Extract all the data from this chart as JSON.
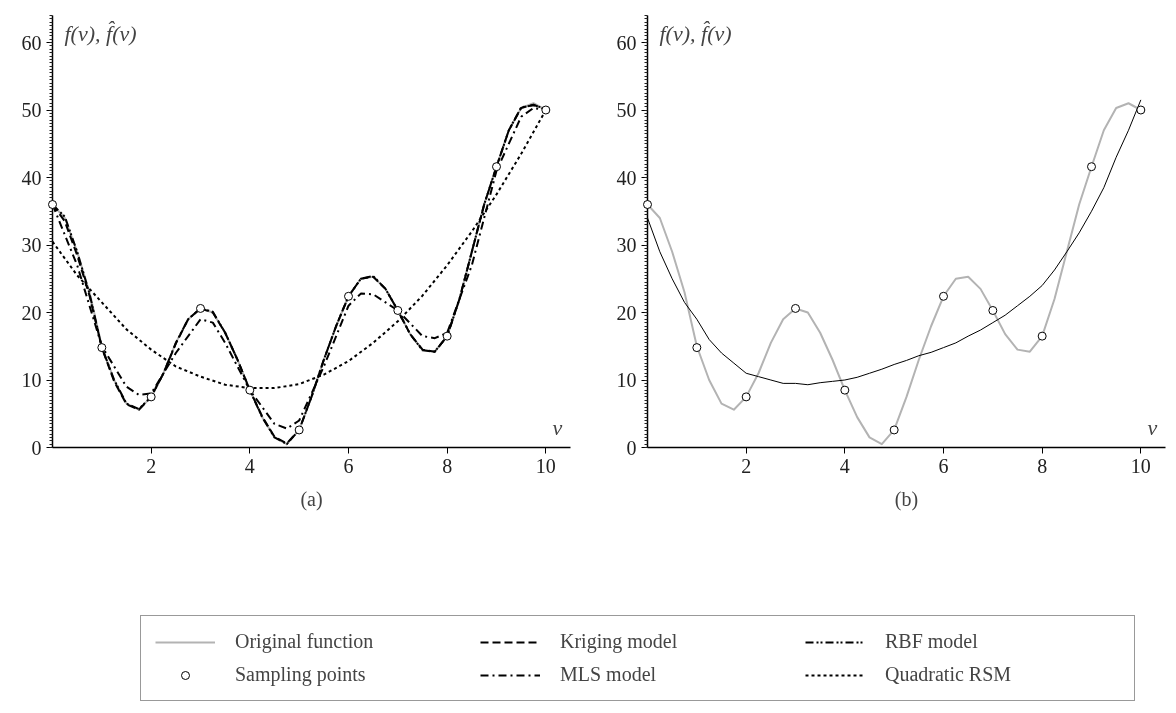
{
  "chart_data": [
    {
      "type": "line",
      "title": "(a)",
      "xlabel": "v",
      "ylabel": "f(v), f̂(v)",
      "xlim": [
        0,
        10.5
      ],
      "ylim": [
        0,
        64
      ],
      "xticks": [
        2,
        4,
        6,
        8,
        10
      ],
      "yticks": [
        0,
        10,
        20,
        30,
        40,
        50,
        60
      ],
      "legend": "bottom",
      "series": [
        {
          "name": "Original function",
          "color": "#b3b3b3",
          "line_style": "solid",
          "x": [
            0,
            0.25,
            0.5,
            0.75,
            1,
            1.25,
            1.5,
            1.75,
            2,
            2.25,
            2.5,
            2.75,
            3,
            3.25,
            3.5,
            3.75,
            4,
            4.25,
            4.5,
            4.75,
            5,
            5.25,
            5.5,
            5.75,
            6,
            6.25,
            6.5,
            6.75,
            7,
            7.25,
            7.5,
            7.75,
            8,
            8.25,
            8.5,
            8.75,
            9,
            9.25,
            9.5,
            9.75,
            10
          ],
          "values": [
            36,
            34,
            29,
            23,
            15,
            10,
            6.5,
            5.6,
            7.5,
            11,
            15.5,
            19,
            20.6,
            20,
            17,
            13,
            8.5,
            4.5,
            1.5,
            0.5,
            2.6,
            7.5,
            13,
            18,
            22.4,
            25,
            25.3,
            23.5,
            20.3,
            16.8,
            14.5,
            14.2,
            16.5,
            22,
            29,
            36,
            41.6,
            47,
            50.3,
            51,
            50
          ]
        },
        {
          "type": "scatter",
          "name": "Sampling points",
          "color": "#000000",
          "marker": "circle",
          "x": [
            0,
            1,
            2,
            3,
            4,
            5,
            6,
            7,
            8,
            9,
            10
          ],
          "values": [
            36,
            14.8,
            7.5,
            20.6,
            8.5,
            2.6,
            22.4,
            20.3,
            16.5,
            41.6,
            50
          ]
        },
        {
          "name": "Kriging model",
          "color": "#000000",
          "line_style": "dashed",
          "x": [
            0,
            0.25,
            0.5,
            0.75,
            1,
            1.25,
            1.5,
            1.75,
            2,
            2.25,
            2.5,
            2.75,
            3,
            3.25,
            3.5,
            3.75,
            4,
            4.25,
            4.5,
            4.75,
            5,
            5.25,
            5.5,
            5.75,
            6,
            6.25,
            6.5,
            6.75,
            7,
            7.25,
            7.5,
            7.75,
            8,
            8.25,
            8.5,
            8.75,
            9,
            9.25,
            9.5,
            9.75,
            10
          ],
          "values": [
            36,
            33.5,
            28.5,
            22.5,
            14.8,
            9.8,
            6.4,
            5.6,
            7.5,
            11,
            15.4,
            19,
            20.6,
            20,
            17,
            13,
            8.5,
            4.6,
            1.6,
            0.6,
            2.6,
            7.5,
            13,
            18,
            22.4,
            25,
            25.3,
            23.5,
            20.3,
            16.8,
            14.5,
            14.2,
            16.5,
            22,
            29,
            36,
            41.6,
            47,
            50.3,
            50.8,
            50
          ]
        },
        {
          "name": "MLS model",
          "color": "#000000",
          "line_style": "dashdot",
          "x": [
            0,
            0.5,
            1,
            1.5,
            1.75,
            2,
            2.5,
            3,
            3.25,
            3.5,
            4,
            4.5,
            4.75,
            5,
            5.5,
            6,
            6.25,
            6.5,
            7,
            7.5,
            7.75,
            8,
            8.5,
            9,
            9.5,
            9.75,
            10
          ],
          "values": [
            36,
            27,
            15,
            9,
            7.8,
            8,
            14,
            19,
            18.5,
            15.5,
            8.5,
            3.5,
            2.8,
            4,
            12,
            21,
            22.8,
            22.7,
            20.3,
            16.5,
            16.2,
            17,
            27,
            41,
            49,
            50.3,
            50
          ]
        },
        {
          "name": "RBF model",
          "color": "#000000",
          "line_style": "dashdotdot",
          "x": [
            0,
            0.25,
            0.5,
            0.75,
            1,
            1.25,
            1.5,
            1.75,
            2,
            2.25,
            2.5,
            2.75,
            3,
            3.25,
            3.5,
            3.75,
            4,
            4.25,
            4.5,
            4.75,
            5,
            5.25,
            5.5,
            5.75,
            6,
            6.25,
            6.5,
            6.75,
            7,
            7.25,
            7.5,
            7.75,
            8,
            8.25,
            8.5,
            8.75,
            9,
            9.25,
            9.5,
            9.75,
            10
          ],
          "values": [
            36,
            34.2,
            29,
            22.8,
            14.8,
            10,
            6.5,
            5.7,
            7.5,
            11,
            15.5,
            19,
            20.6,
            20.1,
            17,
            13,
            8.5,
            4.5,
            1.5,
            0.5,
            2.6,
            7.5,
            13,
            18,
            22.4,
            25,
            25.4,
            23.5,
            20.3,
            16.8,
            14.4,
            14.2,
            16.5,
            22,
            29,
            36,
            41.6,
            47,
            50.4,
            50.7,
            50.2
          ]
        },
        {
          "name": "Quadratic RSM",
          "color": "#000000",
          "line_style": "dotted",
          "x": [
            0,
            0.5,
            1,
            1.5,
            2,
            2.5,
            3,
            3.5,
            4,
            4.5,
            5,
            5.5,
            6,
            6.5,
            7,
            7.5,
            8,
            8.5,
            9,
            9.5,
            10
          ],
          "values": [
            30.5,
            25.5,
            21.5,
            17.5,
            14.5,
            12,
            10.5,
            9.3,
            8.8,
            8.8,
            9.4,
            10.8,
            12.8,
            15.5,
            18.7,
            22.5,
            27,
            32,
            37.5,
            43.5,
            50
          ]
        }
      ]
    },
    {
      "type": "line",
      "title": "(b)",
      "xlabel": "v",
      "ylabel": "f(v), f̂(v)",
      "xlim": [
        0,
        10.5
      ],
      "ylim": [
        0,
        64
      ],
      "xticks": [
        2,
        4,
        6,
        8,
        10
      ],
      "yticks": [
        0,
        10,
        20,
        30,
        40,
        50,
        60
      ],
      "series": [
        {
          "color": "#b3b3b3",
          "line_style": "solid",
          "x": [
            0,
            0.25,
            0.5,
            0.75,
            1,
            1.25,
            1.5,
            1.75,
            2,
            2.25,
            2.5,
            2.75,
            3,
            3.25,
            3.5,
            3.75,
            4,
            4.25,
            4.5,
            4.75,
            5,
            5.25,
            5.5,
            5.75,
            6,
            6.25,
            6.5,
            6.75,
            7,
            7.25,
            7.5,
            7.75,
            8,
            8.25,
            8.5,
            8.75,
            9,
            9.25,
            9.5,
            9.75,
            10
          ],
          "values": [
            36,
            34,
            29,
            23,
            15,
            10,
            6.5,
            5.6,
            7.5,
            11,
            15.5,
            19,
            20.6,
            20,
            17,
            13,
            8.5,
            4.5,
            1.5,
            0.5,
            2.6,
            7.5,
            13,
            18,
            22.4,
            25,
            25.3,
            23.5,
            20.3,
            16.8,
            14.5,
            14.2,
            16.5,
            22,
            29,
            36,
            41.6,
            47,
            50.3,
            51,
            50
          ]
        },
        {
          "color": "#000000",
          "line_style": "solid",
          "x": [
            0,
            0.25,
            0.5,
            0.75,
            1,
            1.25,
            1.5,
            1.75,
            2,
            2.25,
            2.5,
            2.75,
            3,
            3.25,
            3.5,
            3.75,
            4,
            4.25,
            4.5,
            4.75,
            5,
            5.25,
            5.5,
            5.75,
            6,
            6.25,
            6.5,
            6.75,
            7,
            7.25,
            7.5,
            7.75,
            8,
            8.25,
            8.5,
            8.75,
            9,
            9.25,
            9.5,
            9.75,
            10
          ],
          "values": [
            34,
            29,
            25,
            21.5,
            19,
            16,
            14,
            12.5,
            11,
            10.5,
            10,
            9.5,
            9.5,
            9.3,
            9.6,
            9.8,
            10,
            10.4,
            11,
            11.6,
            12.3,
            12.9,
            13.6,
            14.1,
            14.8,
            15.5,
            16.5,
            17.4,
            18.5,
            19.6,
            21,
            22.4,
            24,
            26.3,
            29,
            31.8,
            35,
            38.5,
            43,
            47,
            51.5
          ]
        },
        {
          "type": "scatter",
          "color": "#000000",
          "marker": "circle",
          "x": [
            0,
            1,
            2,
            3,
            4,
            5,
            6,
            7,
            8,
            9,
            10
          ],
          "values": [
            36,
            14.8,
            7.5,
            20.6,
            8.5,
            2.6,
            22.4,
            20.3,
            16.5,
            41.6,
            50
          ]
        }
      ]
    }
  ]
}
